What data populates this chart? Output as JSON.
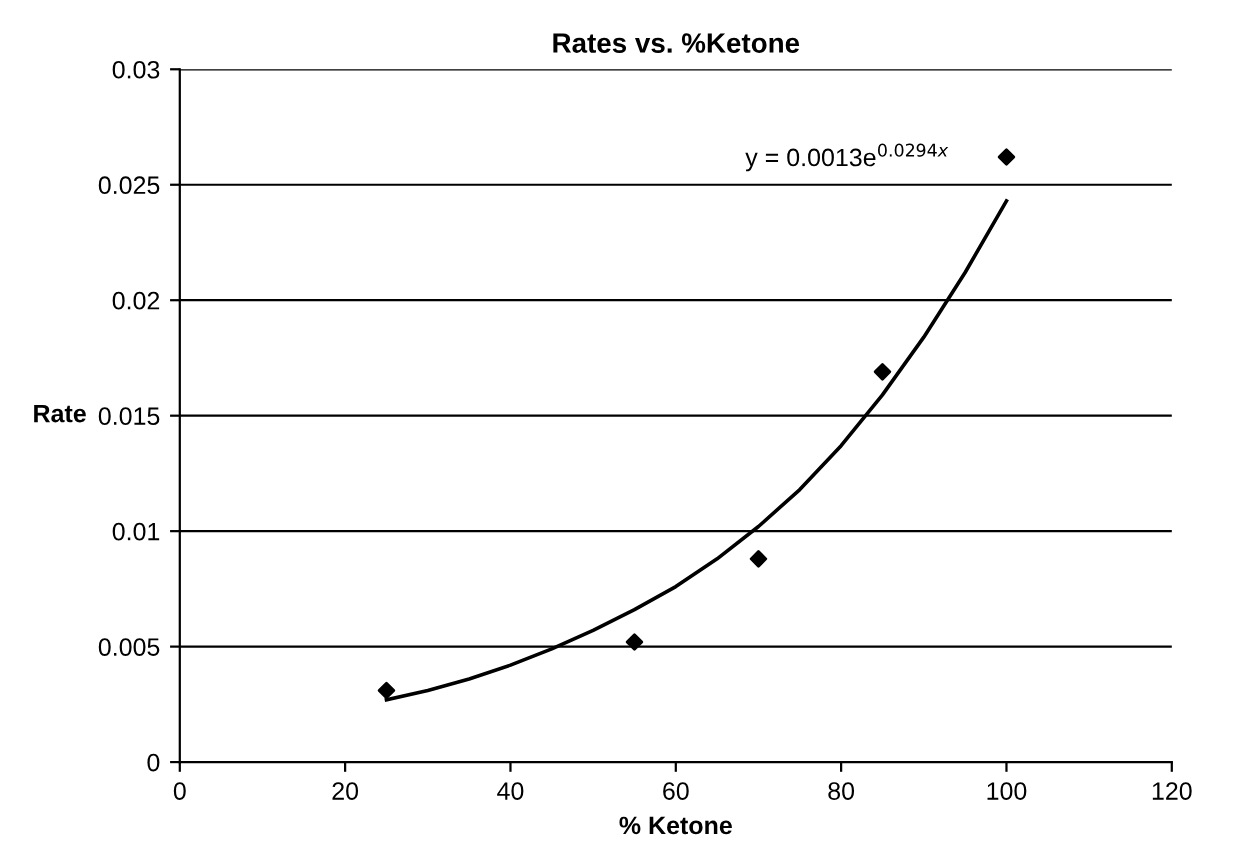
{
  "chart_data": {
    "type": "scatter",
    "title": "Rates vs. %Ketone",
    "xlabel": "% Ketone",
    "ylabel": "Rate",
    "series": [
      {
        "color": "#000000",
        "marker": "diamond",
        "x": [
          25,
          55,
          70,
          85,
          100
        ],
        "values": [
          0.0031,
          0.0052,
          0.0088,
          0.0169,
          0.0262
        ]
      },
      {
        "type": "line",
        "color": "#000000",
        "marker": "none",
        "line_style": "solid",
        "x": [
          25,
          30,
          35,
          40,
          45,
          50,
          55,
          60,
          65,
          70,
          75,
          80,
          85,
          90,
          95,
          100
        ],
        "values": [
          0.0027,
          0.0031,
          0.0036,
          0.0042,
          0.0049,
          0.0057,
          0.0066,
          0.0076,
          0.0088,
          0.0102,
          0.0118,
          0.0137,
          0.0159,
          0.0184,
          0.0212,
          0.0243
        ]
      }
    ],
    "annotations": [
      "y = 0.0013e$^{0.0294x}$"
    ],
    "xlim": [
      0,
      120
    ],
    "xticks": [
      0,
      20,
      40,
      60,
      80,
      100,
      120
    ],
    "ylim": [
      0,
      0.03
    ],
    "yticks": [
      0,
      0.005,
      0.01,
      0.015,
      0.02,
      0.025,
      0.03
    ],
    "grid": "y",
    "legend": false
  }
}
